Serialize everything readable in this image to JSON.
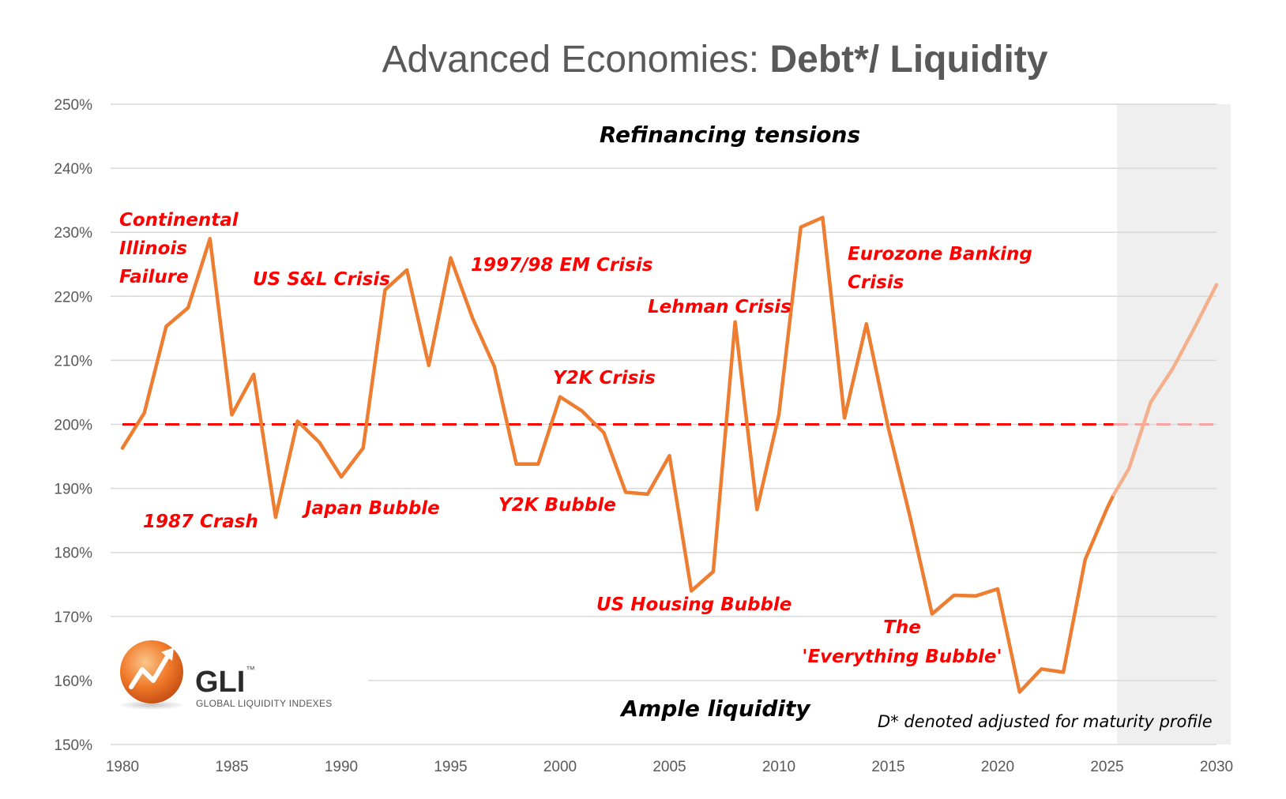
{
  "chart_data": {
    "type": "line",
    "title": "Advanced Economies: Debt*/ Liquidity",
    "title_regular": "Advanced Economies: ",
    "title_bold": "Debt*/ Liquidity",
    "xlabel": "",
    "ylabel": "",
    "xlim": [
      1980,
      2030
    ],
    "ylim": [
      150,
      250
    ],
    "grid": true,
    "x_ticks": [
      "1980",
      "1985",
      "1990",
      "1995",
      "2000",
      "2005",
      "2010",
      "2015",
      "2020",
      "2025",
      "2030"
    ],
    "y_ticks": [
      "150%",
      "160%",
      "170%",
      "180%",
      "190%",
      "200%",
      "210%",
      "220%",
      "230%",
      "240%",
      "250%"
    ],
    "forecast_start": 2025.3,
    "series": [
      {
        "name": "Debt*/Liquidity",
        "color": "#ed7d31",
        "x": [
          1980,
          1981,
          1982,
          1983,
          1984,
          1985,
          1986,
          1987,
          1988,
          1989,
          1990,
          1991,
          1992,
          1993,
          1994,
          1995,
          1996,
          1997,
          1998,
          1999,
          2000,
          2001,
          2002,
          2003,
          2004,
          2005,
          2006,
          2007,
          2008,
          2009,
          2010,
          2011,
          2012,
          2013,
          2014,
          2015,
          2016,
          2017,
          2018,
          2019,
          2020,
          2021,
          2022,
          2023,
          2024,
          2025,
          2025.3
        ],
        "values": [
          196.3,
          201.8,
          215.3,
          218.2,
          229.0,
          201.5,
          207.8,
          185.5,
          200.5,
          197.2,
          191.8,
          196.3,
          221.0,
          224.1,
          209.2,
          226.0,
          216.6,
          209.0,
          193.8,
          193.8,
          204.3,
          202.1,
          198.7,
          189.4,
          189.1,
          195.1,
          174.0,
          177.0,
          216.0,
          186.7,
          201.5,
          230.8,
          232.3,
          201.0,
          215.7,
          199.5,
          185.5,
          170.4,
          173.3,
          173.2,
          174.3,
          158.2,
          161.8,
          161.3,
          178.9,
          186.9,
          189.0
        ]
      },
      {
        "name": "Projection",
        "color": "#f4b08c",
        "x": [
          2025.3,
          2026,
          2027,
          2028,
          2029,
          2030
        ],
        "values": [
          189.0,
          193.1,
          203.5,
          208.7,
          215.1,
          221.8
        ]
      },
      {
        "name": "200% threshold",
        "color": "#ff0000",
        "dashed": true,
        "x": [
          1980,
          2030
        ],
        "values": [
          200,
          200
        ]
      }
    ],
    "annotations": {
      "continental_line1": "Continental",
      "continental_line2": "Illinois",
      "continental_line3": "Failure",
      "crash_1987": "1987 Crash",
      "us_sl": "US S&L Crisis",
      "japan": "Japan Bubble",
      "em_crisis": "1997/98 EM Crisis",
      "y2k_crisis": "Y2K Crisis",
      "y2k_bubble": "Y2K Bubble",
      "lehman": "Lehman Crisis",
      "us_housing": "US Housing Bubble",
      "eurozone_line1": "Eurozone Banking",
      "eurozone_line2": "Crisis",
      "everything_line1": "The",
      "everything_line2": "'Everything Bubble'",
      "refinancing": "Refinancing tensions",
      "ample": "Ample liquidity",
      "footnote": "D* denoted adjusted for maturity profile"
    },
    "logo": {
      "name": "GLI",
      "trademark": "™",
      "subtitle": "GLOBAL LIQUIDITY INDEXES"
    }
  }
}
